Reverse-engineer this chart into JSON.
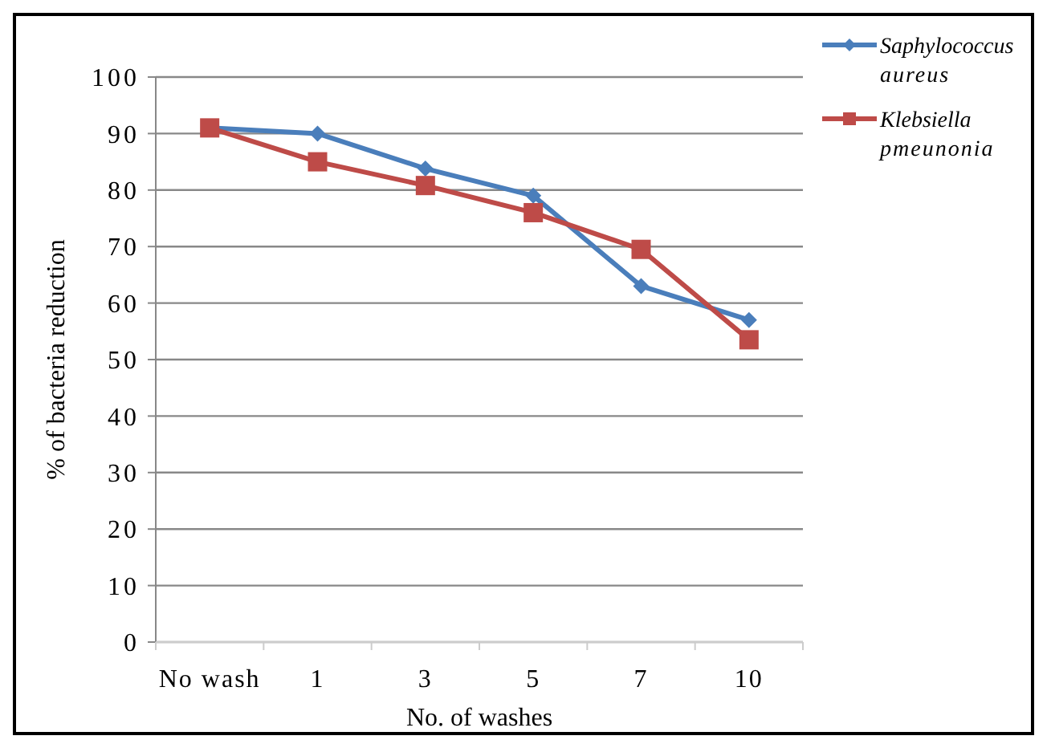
{
  "chart_data": {
    "type": "line",
    "xlabel": "No. of washes",
    "ylabel": "% of bacteria reduction",
    "categories": [
      "No wash",
      "1",
      "3",
      "5",
      "7",
      "10"
    ],
    "series": [
      {
        "name": "Saphylococcus aureus",
        "color": "#4a7ebb",
        "marker": "diamond",
        "values": [
          91,
          90,
          83.8,
          79,
          63,
          57
        ]
      },
      {
        "name": "Klebsiella pmeunonia",
        "color": "#be4b48",
        "marker": "square",
        "values": [
          91,
          85,
          80.8,
          76,
          69.5,
          53.5
        ]
      }
    ],
    "ylim": [
      0,
      100
    ],
    "yticks": [
      0,
      10,
      20,
      30,
      40,
      50,
      60,
      70,
      80,
      90,
      100
    ],
    "grid": "y",
    "legend": "top right"
  }
}
